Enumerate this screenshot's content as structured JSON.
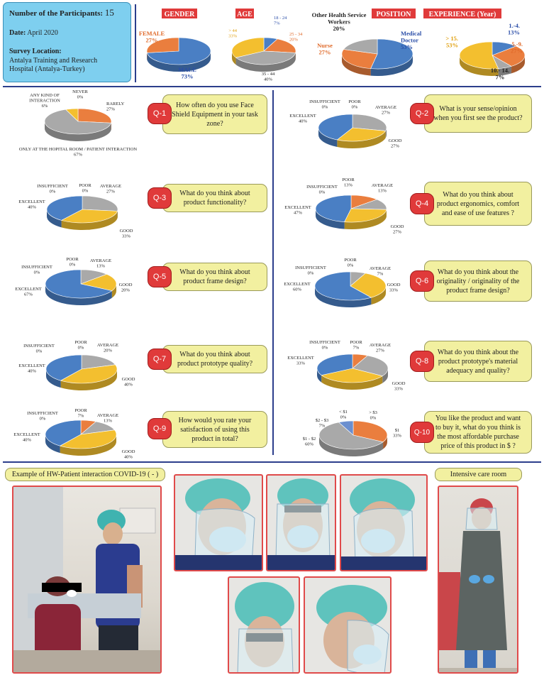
{
  "info": {
    "participants_label": "Number of the Participants:",
    "participants_value": "15",
    "date_label": "Date:",
    "date_value": "April 2020",
    "location_label": "Survey Location:",
    "location_line1": "Antalya Training and Research",
    "location_line2": "Hospital (Antalya-Turkey)"
  },
  "demo_headers": {
    "gender": "GENDER",
    "age": "AGE",
    "position": "POSITION",
    "experience": "EXPERIENCE (Year)"
  },
  "colors": {
    "blue": "#4a7fc4",
    "orange": "#ea7e3e",
    "gray": "#a9a9a9",
    "yellow": "#f3bf2f",
    "header_red": "#e03a3a",
    "info_blue": "#7ecfef",
    "question_yellow": "#f2f0a0",
    "rule": "#2c3e8c"
  },
  "chart_data": [
    {
      "id": "gender",
      "type": "pie",
      "labels": [
        "MALE",
        "FEMALE"
      ],
      "values": [
        73,
        27
      ],
      "colors": [
        "#4a7fc4",
        "#ea7e3e"
      ],
      "label_texts": [
        [
          "MALE",
          "73%"
        ],
        [
          "FEMALE",
          "27%"
        ]
      ]
    },
    {
      "id": "age",
      "type": "pie",
      "labels": [
        "18 - 24",
        "25 - 34",
        "35 - 44",
        "> 44"
      ],
      "values": [
        7,
        20,
        40,
        33
      ],
      "colors": [
        "#4a7fc4",
        "#ea7e3e",
        "#a9a9a9",
        "#f3bf2f"
      ],
      "label_texts": [
        [
          "18 - 24",
          "7%"
        ],
        [
          "25 - 34",
          "20%"
        ],
        [
          "35 - 44",
          "40%"
        ],
        [
          "> 44",
          "33%"
        ]
      ]
    },
    {
      "id": "position",
      "type": "pie",
      "labels": [
        "Medical Doctor",
        "Nurse",
        "Other Health Service Workers"
      ],
      "values": [
        53,
        27,
        20
      ],
      "colors": [
        "#4a7fc4",
        "#ea7e3e",
        "#a9a9a9"
      ],
      "label_texts": [
        [
          "Medical",
          "Doctor",
          "53%"
        ],
        [
          "Nurse",
          "27%"
        ],
        [
          "Other Health Service",
          "Workers",
          "20%"
        ]
      ]
    },
    {
      "id": "experience",
      "type": "pie",
      "labels": [
        "1.-4.",
        "5.-9.",
        "10.-14.",
        "> 15."
      ],
      "values": [
        13,
        27,
        7,
        53
      ],
      "colors": [
        "#4a7fc4",
        "#ea7e3e",
        "#a9a9a9",
        "#f3bf2f"
      ],
      "label_texts": [
        [
          "1.-4.",
          "13%"
        ],
        [
          "5.-9.",
          "27%"
        ],
        [
          "10.- 14.",
          "7%"
        ],
        [
          "> 15.",
          "53%"
        ]
      ]
    },
    {
      "id": "q1",
      "type": "pie",
      "labels": [
        "NEVER",
        "RARELY",
        "ONLY AT THE HOPITAL ROOM / PATIENT INTERACTION",
        "ANY KIND OF INTERACTION"
      ],
      "values": [
        0,
        27,
        67,
        6
      ],
      "colors": [
        "#4a7fc4",
        "#ea7e3e",
        "#a9a9a9",
        "#f3bf2f"
      ],
      "label_texts": [
        [
          "NEVER",
          "0%"
        ],
        [
          "RARELY",
          "27%"
        ],
        [
          "ONLY AT THE HOPITAL ROOM / PATIENT INTERACTION",
          "67%"
        ],
        [
          "ANY KIND OF",
          "INTERACTION",
          "6%"
        ]
      ]
    },
    {
      "id": "q2",
      "type": "pie",
      "labels": [
        "POOR",
        "AVERAGE",
        "GOOD",
        "EXCELLENT",
        "INSUFFICIENT"
      ],
      "values": [
        0,
        27,
        27,
        40,
        0
      ],
      "colors": [
        "#ea7e3e",
        "#a9a9a9",
        "#f3bf2f",
        "#4a7fc4",
        "#6b8fcf"
      ],
      "label_texts": [
        [
          "POOR",
          "0%"
        ],
        [
          "AVERAGE",
          "27%"
        ],
        [
          "GOOD",
          "27%"
        ],
        [
          "EXCELLENT",
          "40%"
        ],
        [
          "INSUFFICIENT",
          "0%"
        ]
      ]
    },
    {
      "id": "q3",
      "type": "pie",
      "labels": [
        "POOR",
        "AVERAGE",
        "GOOD",
        "EXCELLENT",
        "INSUFFICIENT"
      ],
      "values": [
        0,
        27,
        33,
        40,
        0
      ],
      "colors": [
        "#ea7e3e",
        "#a9a9a9",
        "#f3bf2f",
        "#4a7fc4",
        "#6b8fcf"
      ],
      "label_texts": [
        [
          "POOR",
          "0%"
        ],
        [
          "AVERAGE",
          "27%"
        ],
        [
          "GOOD",
          "33%"
        ],
        [
          "EXCELLENT",
          "40%"
        ],
        [
          "INSUFFICIENT",
          "0%"
        ]
      ]
    },
    {
      "id": "q4",
      "type": "pie",
      "labels": [
        "POOR",
        "AVERAGE",
        "GOOD",
        "EXCELLENT",
        "INSUFFICIENT"
      ],
      "values": [
        13,
        13,
        27,
        47,
        0
      ],
      "colors": [
        "#ea7e3e",
        "#a9a9a9",
        "#f3bf2f",
        "#4a7fc4",
        "#6b8fcf"
      ],
      "label_texts": [
        [
          "POOR",
          "13%"
        ],
        [
          "AVERAGE",
          "13%"
        ],
        [
          "GOOD",
          "27%"
        ],
        [
          "EXCELLENT",
          "47%"
        ],
        [
          "INSUFFICIENT",
          "0%"
        ]
      ]
    },
    {
      "id": "q5",
      "type": "pie",
      "labels": [
        "POOR",
        "AVERAGE",
        "GOOD",
        "EXCELLENT",
        "INSUFFICIENT"
      ],
      "values": [
        0,
        13,
        20,
        67,
        0
      ],
      "colors": [
        "#ea7e3e",
        "#a9a9a9",
        "#f3bf2f",
        "#4a7fc4",
        "#6b8fcf"
      ],
      "label_texts": [
        [
          "POOR",
          "0%"
        ],
        [
          "AVERAGE",
          "13%"
        ],
        [
          "GOOD",
          "20%"
        ],
        [
          "EXCELLENT",
          "67%"
        ],
        [
          "INSUFFICIENT",
          "0%"
        ]
      ]
    },
    {
      "id": "q6",
      "type": "pie",
      "labels": [
        "POOR",
        "AVERAGE",
        "GOOD",
        "EXCELLENT",
        "INSUFFICIENT"
      ],
      "values": [
        0,
        7,
        33,
        60,
        0
      ],
      "colors": [
        "#ea7e3e",
        "#a9a9a9",
        "#f3bf2f",
        "#4a7fc4",
        "#6b8fcf"
      ],
      "label_texts": [
        [
          "POOR",
          "0%"
        ],
        [
          "AVERAGE",
          "7%"
        ],
        [
          "GOOD",
          "33%"
        ],
        [
          "EXCELLENT",
          "60%"
        ],
        [
          "INSUFFICIENT",
          "0%"
        ]
      ]
    },
    {
      "id": "q7",
      "type": "pie",
      "labels": [
        "POOR",
        "AVERAGE",
        "GOOD",
        "EXCELLENT",
        "INSUFFICIENT"
      ],
      "values": [
        0,
        20,
        40,
        40,
        0
      ],
      "colors": [
        "#ea7e3e",
        "#a9a9a9",
        "#f3bf2f",
        "#4a7fc4",
        "#6b8fcf"
      ],
      "label_texts": [
        [
          "POOR",
          "0%"
        ],
        [
          "AVERAGE",
          "20%"
        ],
        [
          "GOOD",
          "40%"
        ],
        [
          "EXCELLENT",
          "40%"
        ],
        [
          "INSUFFICIENT",
          "0%"
        ]
      ]
    },
    {
      "id": "q8",
      "type": "pie",
      "labels": [
        "POOR",
        "AVERAGE",
        "GOOD",
        "EXCELLENT",
        "INSUFFICIENT"
      ],
      "values": [
        7,
        27,
        33,
        33,
        0
      ],
      "colors": [
        "#ea7e3e",
        "#a9a9a9",
        "#f3bf2f",
        "#4a7fc4",
        "#6b8fcf"
      ],
      "label_texts": [
        [
          "POOR",
          "7%"
        ],
        [
          "AVERAGE",
          "27%"
        ],
        [
          "GOOD",
          "33%"
        ],
        [
          "EXCELLENT",
          "33%"
        ],
        [
          "INSUFFICIENT",
          "0%"
        ]
      ]
    },
    {
      "id": "q9",
      "type": "pie",
      "labels": [
        "POOR",
        "AVERAGE",
        "GOOD",
        "EXCELLENT",
        "INSUFFICIENT"
      ],
      "values": [
        7,
        13,
        40,
        40,
        0
      ],
      "colors": [
        "#ea7e3e",
        "#a9a9a9",
        "#f3bf2f",
        "#4a7fc4",
        "#6b8fcf"
      ],
      "label_texts": [
        [
          "POOR",
          "7%"
        ],
        [
          "AVERAGE",
          "13%"
        ],
        [
          "GOOD",
          "40%"
        ],
        [
          "EXCELLENT",
          "40%"
        ],
        [
          "INSUFFICIENT",
          "0%"
        ]
      ]
    },
    {
      "id": "q10",
      "type": "pie",
      "labels": [
        "< $1",
        "> $3",
        "$1",
        "$1 - $2",
        "$2 - $3"
      ],
      "values": [
        0,
        0,
        33,
        60,
        7
      ],
      "colors": [
        "#4a7fc4",
        "#f3bf2f",
        "#ea7e3e",
        "#a9a9a9",
        "#6b8fcf"
      ],
      "label_texts": [
        [
          "< $1",
          "0%"
        ],
        [
          "> $3",
          "0%"
        ],
        [
          "$1",
          "33%"
        ],
        [
          "$1 - $2",
          "60%"
        ],
        [
          "$2 - $3",
          "7%"
        ]
      ]
    }
  ],
  "questions": [
    {
      "badge": "Q-1",
      "text": "How often do you use Face Shield Equipment in your task zone?"
    },
    {
      "badge": "Q-2",
      "text": "What is your sense/opinion when you first see the product?"
    },
    {
      "badge": "Q-3",
      "text": "What do you think about product functionality?"
    },
    {
      "badge": "Q-4",
      "text": "What do you think about product ergonomics, comfort and ease of use features ?"
    },
    {
      "badge": "Q-5",
      "text": "What do you think about product frame design?"
    },
    {
      "badge": "Q-6",
      "text": "What do you think about the originality / originality of the product frame design?"
    },
    {
      "badge": "Q-7",
      "text": "What do you think about product prototype quality?"
    },
    {
      "badge": "Q-8",
      "text": "What do you think about the product prototype's material adequacy and quality?"
    },
    {
      "badge": "Q-9",
      "text": "How would you rate your satisfaction of using this product in total?"
    },
    {
      "badge": "Q-10",
      "text": "You like the product and want to buy it, what do you think is the most affordable purchase price of this product in $ ?"
    }
  ],
  "photos": {
    "caption_left": "Example of HW-Patient interaction COVID-19 ( - )",
    "caption_right": "Intensive care room"
  }
}
